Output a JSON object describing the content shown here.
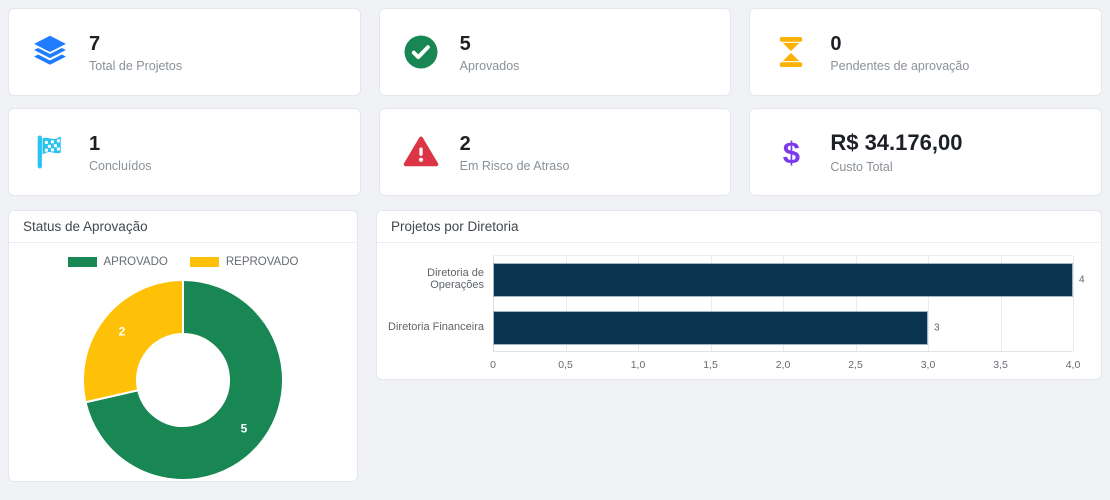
{
  "stats": [
    {
      "icon": "layers-icon",
      "icon_color": "#1f7bff",
      "value": "7",
      "label": "Total de Projetos"
    },
    {
      "icon": "check-circle-icon",
      "icon_color": "#198754",
      "value": "5",
      "label": "Aprovados"
    },
    {
      "icon": "hourglass-icon",
      "icon_color": "#fcb103",
      "value": "0",
      "label": "Pendentes de aprovação"
    },
    {
      "icon": "checkered-flag-icon",
      "icon_color": "#29c2f1",
      "value": "1",
      "label": "Concluídos"
    },
    {
      "icon": "warning-triangle-icon",
      "icon_color": "#dc3545",
      "value": "2",
      "label": "Em Risco de Atraso"
    },
    {
      "icon": "dollar-icon",
      "icon_color": "#7c3aed",
      "value": "R$ 34.176,00",
      "label": "Custo Total"
    }
  ],
  "panels": {
    "donut": {
      "title": "Status de Aprovação"
    },
    "bars": {
      "title": "Projetos por Diretoria"
    }
  },
  "chart_data": [
    {
      "type": "pie",
      "title": "Status de Aprovação",
      "labels": [
        "APROVADO",
        "REPROVADO"
      ],
      "values": [
        5,
        2
      ],
      "colors": [
        "#198754",
        "#ffc107"
      ],
      "data_labels": [
        "5",
        "2"
      ],
      "legend_position": "top",
      "cutout_pct": 46,
      "start_angle_deg": 0,
      "direction": "clockwise"
    },
    {
      "type": "bar",
      "title": "Projetos por Diretoria",
      "orientation": "horizontal",
      "categories": [
        "Diretoria de Operações",
        "Diretoria Financeira"
      ],
      "values": [
        4,
        3
      ],
      "value_labels": [
        "4",
        "3"
      ],
      "bar_color": "#0a334f",
      "bar_border_color": "#9fb6c9",
      "xlim": [
        0,
        4
      ],
      "xticks": [
        0,
        0.5,
        1,
        1.5,
        2,
        2.5,
        3,
        3.5,
        4
      ],
      "xtick_labels": [
        "0",
        "0,5",
        "1,0",
        "1,5",
        "2,0",
        "2,5",
        "3,0",
        "3,5",
        "4,0"
      ],
      "grid": true,
      "legend": false
    }
  ]
}
